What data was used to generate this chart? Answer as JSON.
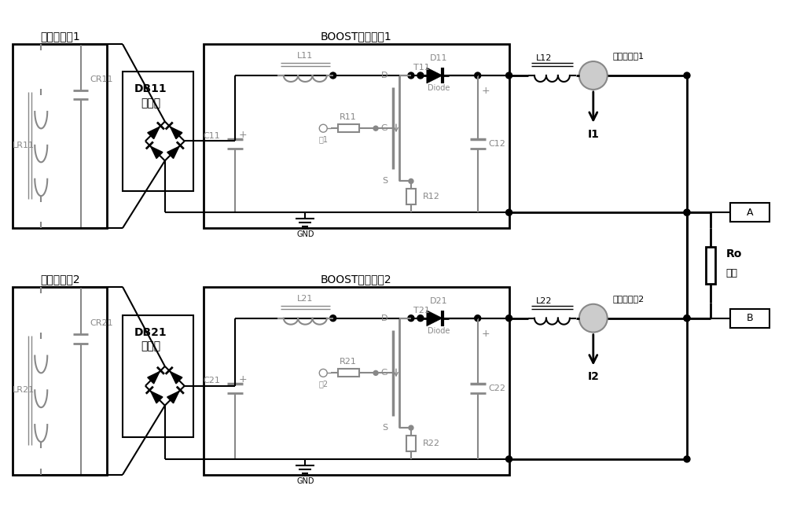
{
  "figsize": [
    10.0,
    6.55
  ],
  "dpi": 100,
  "bg": "#ffffff",
  "black": "#000000",
  "gray": "#888888",
  "circuits": [
    {
      "yo": 0.55,
      "box1_label": "串联谐振耔1",
      "boost_label": "BOOST升压电路1",
      "db1": "DB11",
      "db2": "整流桥",
      "CR": "CR11",
      "LR": "LR11",
      "L1": "L11",
      "L2": "L12",
      "R1": "R11",
      "R2": "R12",
      "C1": "C11",
      "C2": "C12",
      "D": "D11",
      "T": "T11",
      "drive": "騦1",
      "sensor": "电流传感刨1",
      "I": "I1",
      "GND": "GND"
    },
    {
      "yo": 0.0,
      "box1_label": "串联谐振耔2",
      "boost_label": "BOOST升压电路2",
      "db1": "DB21",
      "db2": "整流桥",
      "CR": "CR21",
      "LR": "LR21",
      "L1": "L21",
      "L2": "L22",
      "R1": "R21",
      "R2": "R22",
      "C1": "C21",
      "C2": "C22",
      "D": "D21",
      "T": "T21",
      "drive": "騦2",
      "sensor": "电流传感刨2",
      "I": "I2",
      "GND": "GND"
    }
  ],
  "Ro": "Ro",
  "load": "负载",
  "A": "A",
  "B": "B"
}
